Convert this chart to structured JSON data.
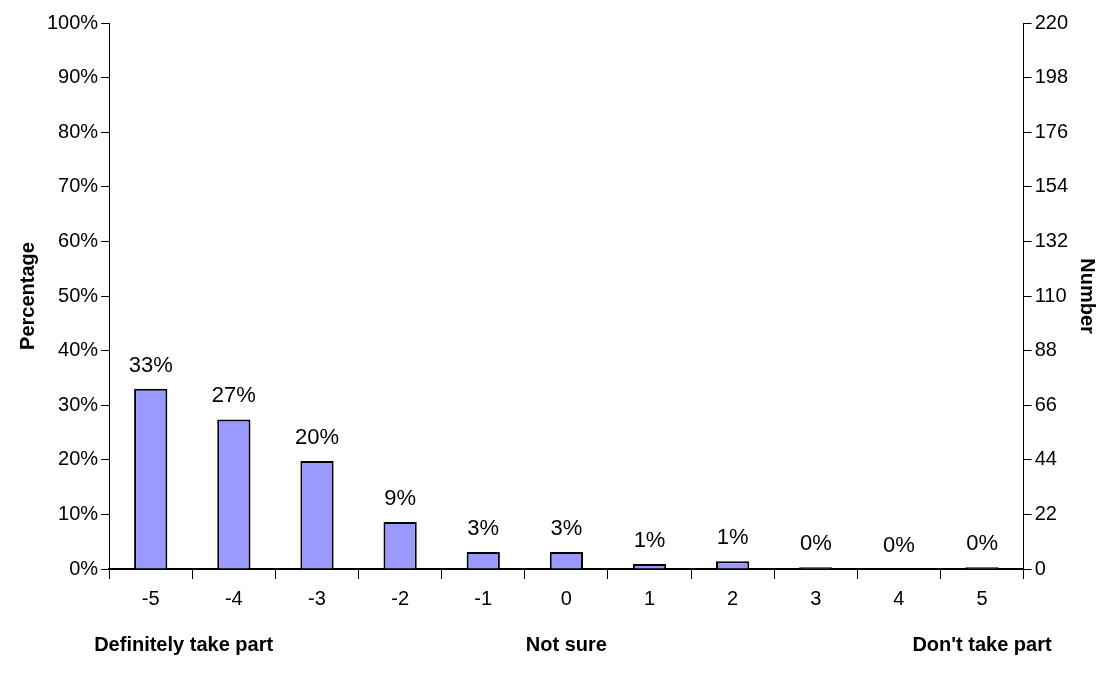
{
  "chart_data": {
    "type": "bar",
    "categories": [
      "-5",
      "-4",
      "-3",
      "-2",
      "-1",
      "0",
      "1",
      "2",
      "3",
      "4",
      "5"
    ],
    "values": [
      33,
      27.4,
      19.8,
      8.6,
      3.1,
      3.1,
      0.9,
      1.4,
      0.3,
      0,
      0.3
    ],
    "value_labels": [
      "33%",
      "27%",
      "20%",
      "9%",
      "3%",
      "3%",
      "1%",
      "1%",
      "0%",
      "0%",
      "0%"
    ],
    "color": "#9999ff",
    "ylabel": "Percentage",
    "y2label": "Number",
    "ylim": [
      0,
      100
    ],
    "yticks": [
      {
        "value": 0,
        "label": "0%"
      },
      {
        "value": 10,
        "label": "10%"
      },
      {
        "value": 20,
        "label": "20%"
      },
      {
        "value": 30,
        "label": "30%"
      },
      {
        "value": 40,
        "label": "40%"
      },
      {
        "value": 50,
        "label": "50%"
      },
      {
        "value": 60,
        "label": "60%"
      },
      {
        "value": 70,
        "label": "70%"
      },
      {
        "value": 80,
        "label": "80%"
      },
      {
        "value": 90,
        "label": "90%"
      },
      {
        "value": 100,
        "label": "100%"
      }
    ],
    "y2lim": [
      0,
      220
    ],
    "y2ticks": [
      0,
      22,
      44,
      66,
      88,
      110,
      132,
      154,
      176,
      198,
      220
    ],
    "annotations": [
      "Definitely take part",
      "Not sure",
      "Don't take part"
    ],
    "grid": false,
    "legend": false
  }
}
